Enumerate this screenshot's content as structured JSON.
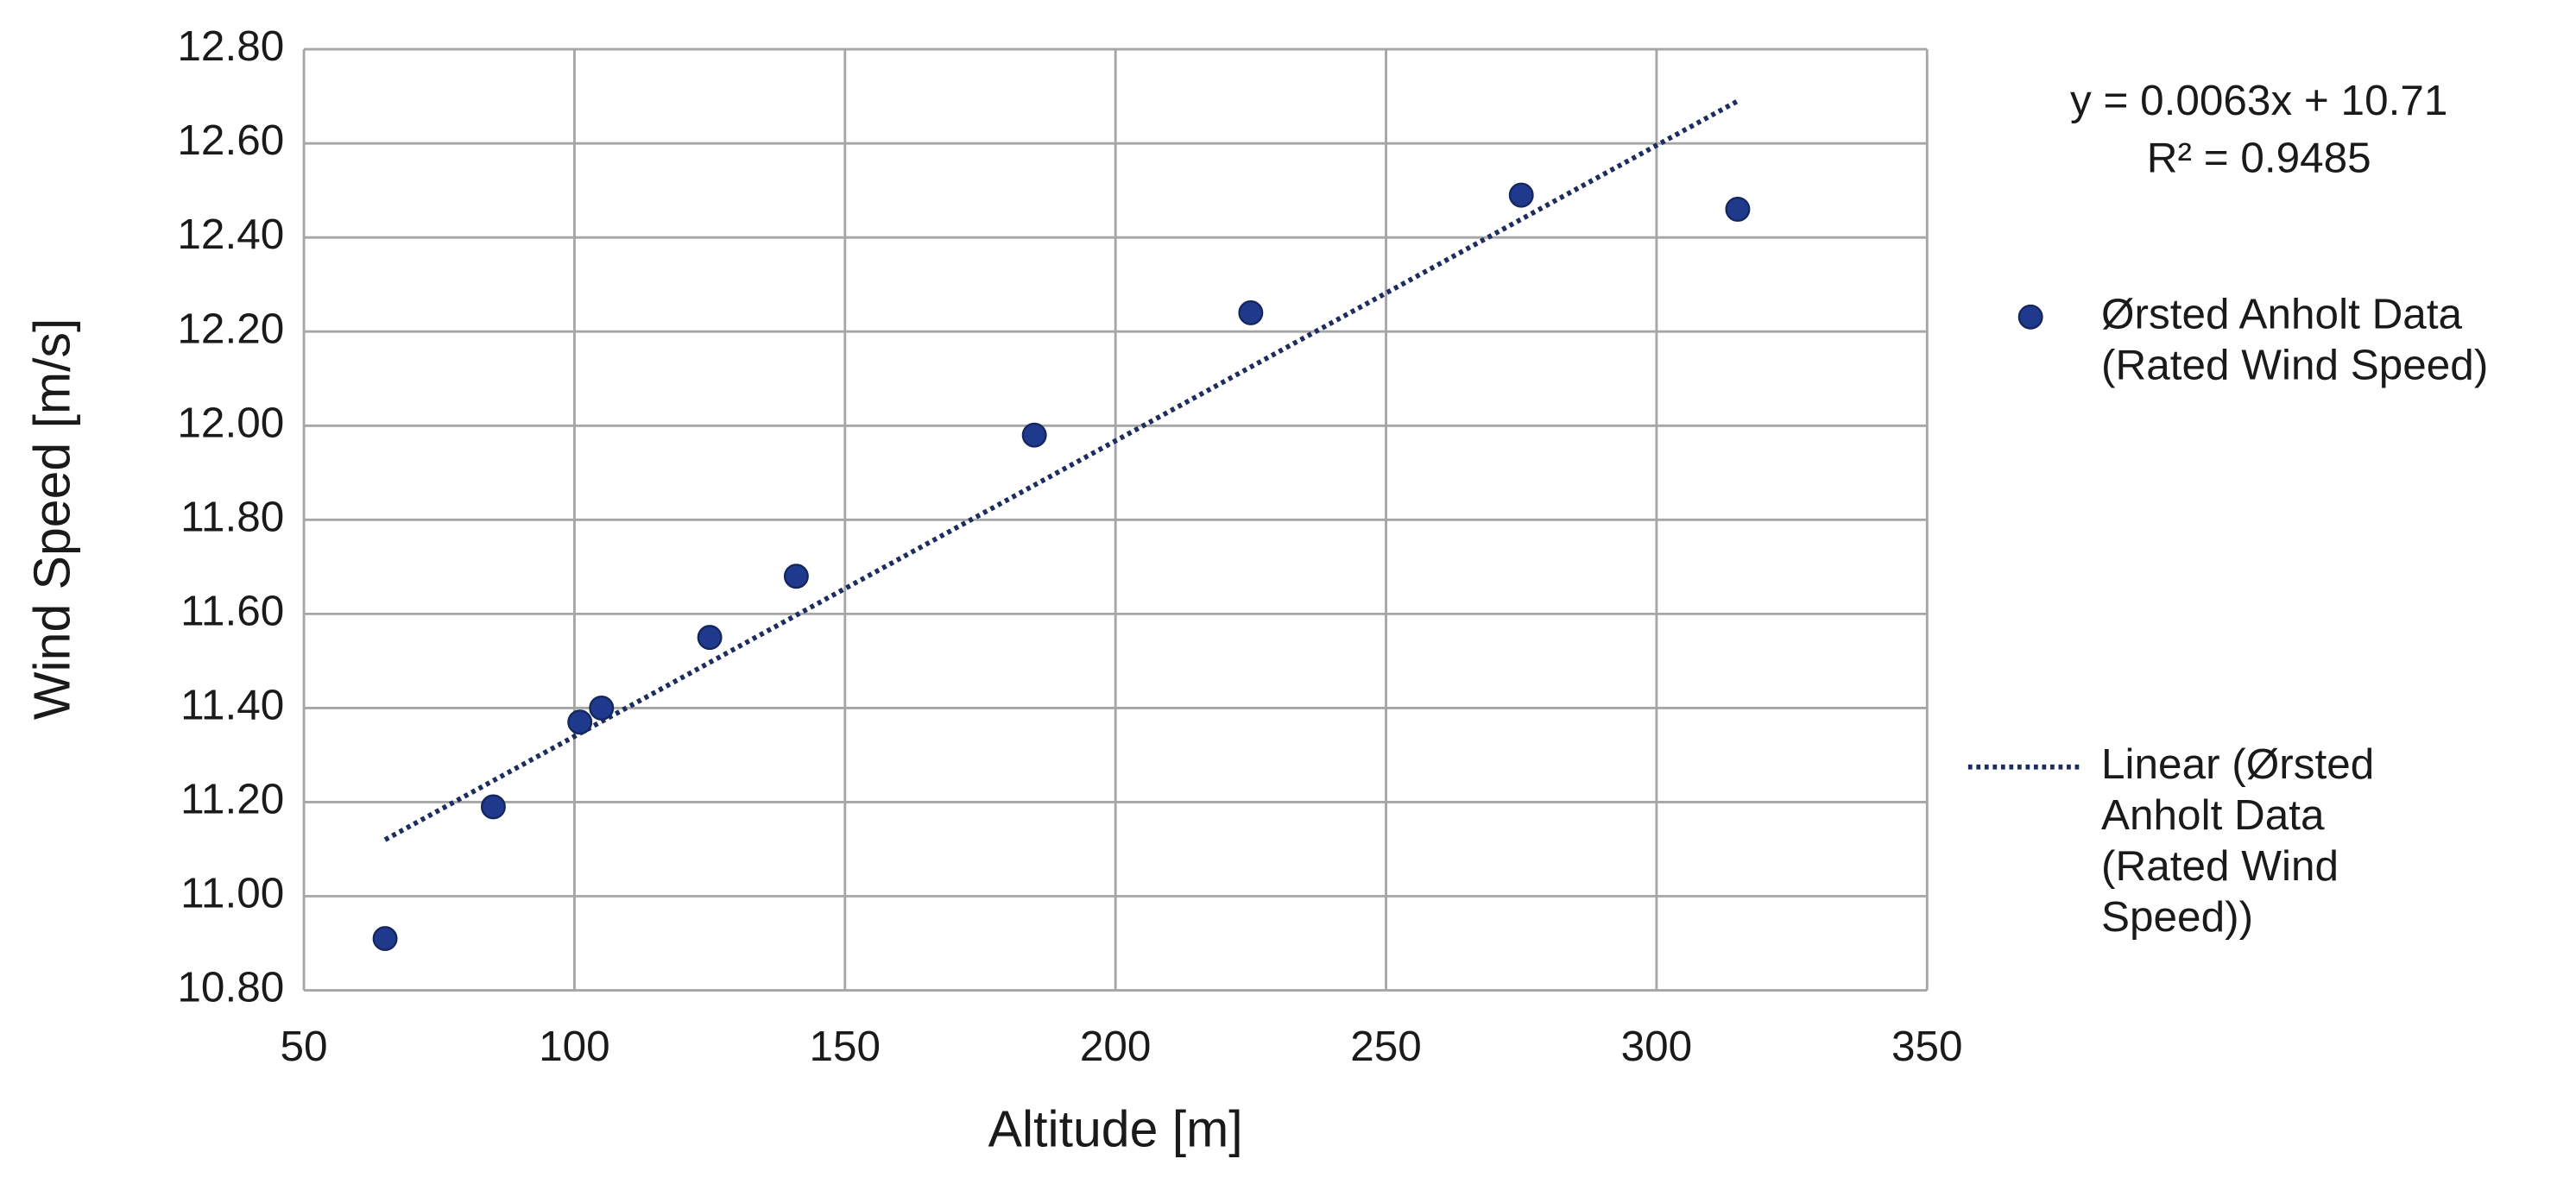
{
  "chart_data": {
    "type": "scatter",
    "x_label": "Altitude [m]",
    "y_label": "Wind Speed [m/s]",
    "trendline_equation": "y = 0.0063x + 10.71",
    "r_squared": "R² = 0.9485",
    "xlim": [
      50,
      350
    ],
    "xticks": [
      50,
      100,
      150,
      200,
      250,
      300,
      350
    ],
    "ylim": [
      10.8,
      12.8
    ],
    "yticks": [
      {
        "value": 10.8,
        "label": "10.80"
      },
      {
        "value": 11.0,
        "label": "11.00"
      },
      {
        "value": 11.2,
        "label": "11.20"
      },
      {
        "value": 11.4,
        "label": "11.40"
      },
      {
        "value": 11.6,
        "label": "11.60"
      },
      {
        "value": 11.8,
        "label": "11.80"
      },
      {
        "value": 12.0,
        "label": "12.00"
      },
      {
        "value": 12.2,
        "label": "12.20"
      },
      {
        "value": 12.4,
        "label": "12.40"
      },
      {
        "value": 12.6,
        "label": "12.60"
      },
      {
        "value": 12.8,
        "label": "12.80"
      }
    ],
    "grid": true,
    "legend_position": "right",
    "series": [
      {
        "name": "Ørsted Anholt Data (Rated Wind Speed)",
        "type": "scatter",
        "color": "#1f3a8c",
        "x": [
          65,
          85,
          101,
          105,
          125,
          141,
          185,
          225,
          275,
          315
        ],
        "values": [
          10.91,
          11.19,
          11.37,
          11.4,
          11.55,
          11.68,
          11.98,
          12.24,
          12.49,
          12.46
        ]
      },
      {
        "name": "Linear (Ørsted Anholt Data (Rated Wind Speed))",
        "type": "line",
        "color": "#1c2d5e",
        "x": [
          65,
          315
        ],
        "values": [
          11.12,
          12.69
        ]
      }
    ]
  }
}
